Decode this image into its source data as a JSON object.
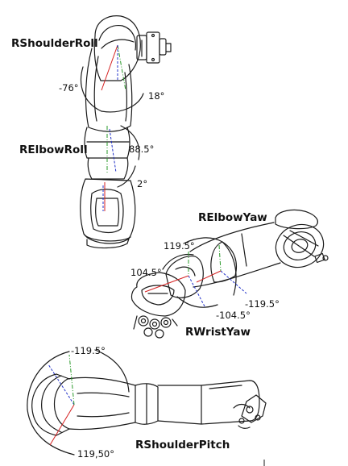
{
  "figure": {
    "labels": {
      "shoulder_roll": "RShoulderRoll",
      "elbow_roll": "RElbowRoll",
      "elbow_yaw": "RElbowYaw",
      "wrist_yaw": "RWristYaw",
      "shoulder_pitch": "RShoulderPitch"
    },
    "angles": {
      "shoulder_roll_min": "-76°",
      "shoulder_roll_max": "18°",
      "elbow_roll_max": "88.5°",
      "elbow_roll_min": "2°",
      "elbow_yaw_max": "119.5°",
      "elbow_yaw_min": "-119.5°",
      "wrist_yaw_max": "104.5°",
      "wrist_yaw_min": "-104.5°",
      "shoulder_pitch_min": "-119.5°",
      "shoulder_pitch_max": "119,50°"
    }
  },
  "colors": {
    "outline": "#1a1a1a",
    "axis_red": "#d42020",
    "axis_green": "#2a9a2a",
    "axis_blue": "#2030c8"
  }
}
